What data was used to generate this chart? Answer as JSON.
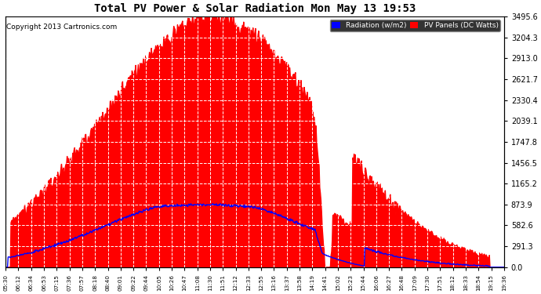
{
  "title": "Total PV Power & Solar Radiation Mon May 13 19:53",
  "copyright": "Copyright 2013 Cartronics.com",
  "background_color": "#ffffff",
  "plot_bg_color": "#ffffff",
  "y_max": 3495.6,
  "y_ticks": [
    0.0,
    291.3,
    582.6,
    873.9,
    1165.2,
    1456.5,
    1747.8,
    2039.1,
    2330.4,
    2621.7,
    2913.0,
    3204.3,
    3495.6
  ],
  "x_labels": [
    "05:30",
    "06:12",
    "06:34",
    "06:53",
    "07:15",
    "07:36",
    "07:57",
    "08:18",
    "08:40",
    "09:01",
    "09:22",
    "09:44",
    "10:05",
    "10:26",
    "10:47",
    "11:08",
    "11:30",
    "11:51",
    "12:12",
    "12:33",
    "12:55",
    "13:16",
    "13:37",
    "13:58",
    "14:19",
    "14:41",
    "15:02",
    "15:23",
    "15:44",
    "16:06",
    "16:27",
    "16:48",
    "17:09",
    "17:30",
    "17:51",
    "18:12",
    "18:33",
    "18:54",
    "19:15",
    "19:36"
  ],
  "legend_radiation_color": "#0000ff",
  "legend_pv_color": "#ff0000",
  "legend_radiation_label": "Radiation (w/m2)",
  "legend_pv_label": "PV Panels (DC Watts)",
  "grid_color": "#ffffff",
  "grid_style": "--",
  "pv_peak": 3495.6,
  "rad_max": 950.0
}
